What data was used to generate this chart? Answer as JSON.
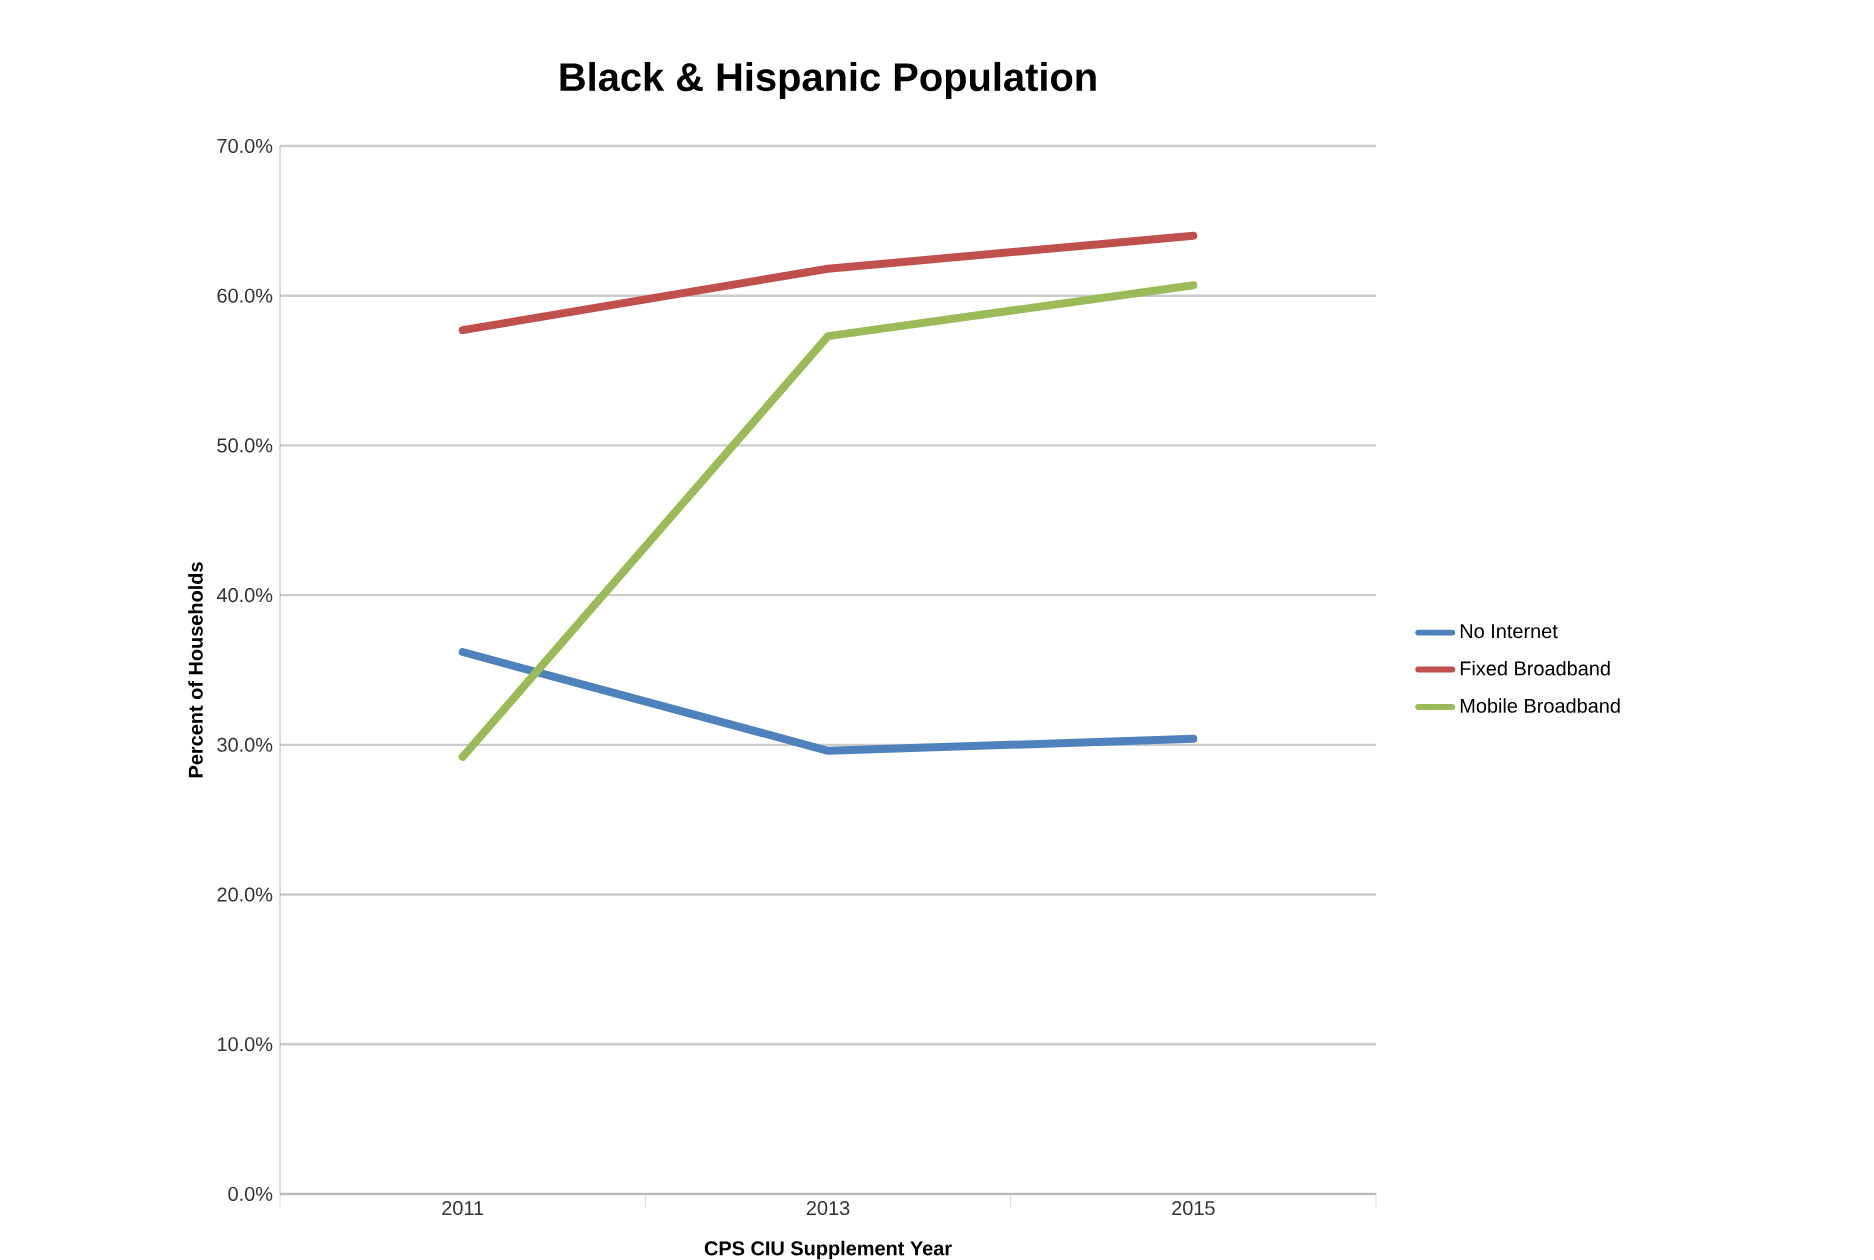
{
  "chart_data": {
    "type": "line",
    "title": "Black & Hispanic Population",
    "xlabel": "CPS CIU Supplement Year",
    "ylabel": "Percent of Households",
    "categories": [
      "2011",
      "2013",
      "2015"
    ],
    "series": [
      {
        "name": "No Internet",
        "color": "#4f81bd",
        "values": [
          36.2,
          29.6,
          30.4
        ]
      },
      {
        "name": "Fixed Broadband",
        "color": "#c0504d",
        "values": [
          57.7,
          61.8,
          64.0
        ]
      },
      {
        "name": "Mobile Broadband",
        "color": "#9bbb59",
        "values": [
          29.2,
          57.3,
          60.7
        ]
      }
    ],
    "ylim": [
      0,
      70
    ],
    "yticks": [
      {
        "value": 0,
        "label": "0.0%"
      },
      {
        "value": 10,
        "label": "10.0%"
      },
      {
        "value": 20,
        "label": "20.0%"
      },
      {
        "value": 30,
        "label": "30.0%"
      },
      {
        "value": 40,
        "label": "40.0%"
      },
      {
        "value": 50,
        "label": "50.0%"
      },
      {
        "value": 60,
        "label": "60.0%"
      },
      {
        "value": 70,
        "label": "70.0%"
      }
    ],
    "grid": "y",
    "legend": "right"
  }
}
